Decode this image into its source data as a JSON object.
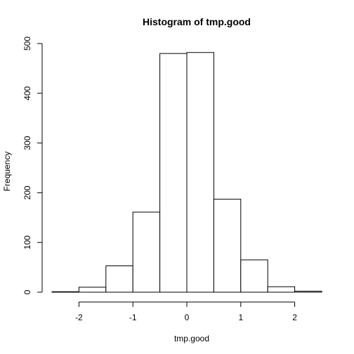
{
  "chart_data": {
    "type": "bar",
    "title": "Histogram of tmp.good",
    "xlabel": "tmp.good",
    "ylabel": "Frequency",
    "xlim": [
      -2.5,
      2.5
    ],
    "ylim": [
      0,
      500
    ],
    "bins": [
      {
        "start": -2.5,
        "end": -2.0,
        "count": 1
      },
      {
        "start": -2.0,
        "end": -1.5,
        "count": 10
      },
      {
        "start": -1.5,
        "end": -1.0,
        "count": 53
      },
      {
        "start": -1.0,
        "end": -0.5,
        "count": 161
      },
      {
        "start": -0.5,
        "end": 0.0,
        "count": 480
      },
      {
        "start": 0.0,
        "end": 0.5,
        "count": 482
      },
      {
        "start": 0.5,
        "end": 1.0,
        "count": 187
      },
      {
        "start": 1.0,
        "end": 1.5,
        "count": 65
      },
      {
        "start": 1.5,
        "end": 2.0,
        "count": 11
      },
      {
        "start": 2.0,
        "end": 2.5,
        "count": 2
      }
    ],
    "x_ticks": [
      -2,
      -1,
      0,
      1,
      2
    ],
    "x_tick_labels": [
      "-2",
      "-1",
      "0",
      "1",
      "2"
    ],
    "y_ticks": [
      0,
      100,
      200,
      300,
      400,
      500
    ],
    "y_tick_labels": [
      "0",
      "100",
      "200",
      "300",
      "400",
      "500"
    ],
    "bar_fill": "#ffffff",
    "bar_stroke": "#000000",
    "grid": false,
    "legend": "none"
  }
}
